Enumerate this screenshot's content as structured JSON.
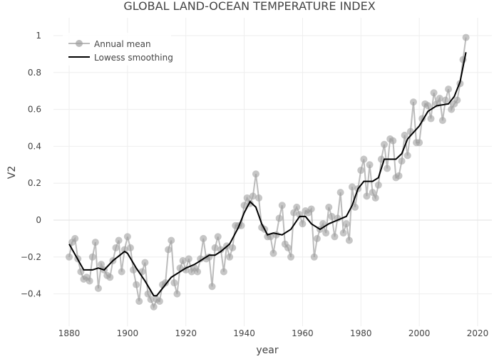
{
  "chart_data": {
    "type": "line",
    "title": "GLOBAL LAND-OCEAN TEMPERATURE INDEX",
    "xlabel": "year",
    "ylabel": "V2",
    "xlim": [
      1870,
      2024
    ],
    "ylim": [
      -0.58,
      1.08
    ],
    "xticks": [
      1880,
      1900,
      1920,
      1940,
      1960,
      1980,
      2000,
      2020
    ],
    "yticks": [
      -0.4,
      -0.2,
      0,
      0.2,
      0.4,
      0.6,
      0.8,
      1
    ],
    "grid": true,
    "legend_position": "top-left",
    "colors": {
      "annual": "#a0a0a0",
      "lowess": "#000000"
    },
    "series": [
      {
        "name": "Annual mean",
        "mode": "lines+markers",
        "x_start": 1880,
        "values": [
          -0.2,
          -0.12,
          -0.1,
          -0.21,
          -0.28,
          -0.32,
          -0.31,
          -0.33,
          -0.2,
          -0.12,
          -0.37,
          -0.24,
          -0.27,
          -0.3,
          -0.31,
          -0.22,
          -0.15,
          -0.11,
          -0.28,
          -0.16,
          -0.09,
          -0.15,
          -0.27,
          -0.35,
          -0.44,
          -0.28,
          -0.23,
          -0.4,
          -0.43,
          -0.47,
          -0.43,
          -0.44,
          -0.35,
          -0.34,
          -0.16,
          -0.11,
          -0.34,
          -0.4,
          -0.26,
          -0.22,
          -0.27,
          -0.21,
          -0.28,
          -0.26,
          -0.28,
          -0.21,
          -0.1,
          -0.21,
          -0.2,
          -0.36,
          -0.15,
          -0.09,
          -0.16,
          -0.28,
          -0.14,
          -0.2,
          -0.15,
          -0.03,
          -0.03,
          -0.03,
          0.08,
          0.12,
          0.09,
          0.13,
          0.25,
          0.12,
          -0.04,
          -0.05,
          -0.09,
          -0.09,
          -0.18,
          -0.08,
          0.01,
          0.08,
          -0.13,
          -0.15,
          -0.2,
          0.04,
          0.07,
          0.03,
          -0.02,
          0.05,
          0.04,
          0.06,
          -0.2,
          -0.1,
          -0.05,
          -0.02,
          -0.07,
          0.07,
          0.02,
          -0.09,
          0.01,
          0.15,
          -0.07,
          -0.02,
          -0.11,
          0.18,
          0.07,
          0.17,
          0.27,
          0.33,
          0.13,
          0.3,
          0.15,
          0.12,
          0.19,
          0.33,
          0.41,
          0.28,
          0.44,
          0.43,
          0.23,
          0.24,
          0.32,
          0.46,
          0.35,
          0.48,
          0.64,
          0.42,
          0.42,
          0.55,
          0.63,
          0.62,
          0.55,
          0.69,
          0.63,
          0.66,
          0.54,
          0.65,
          0.71,
          0.6,
          0.63,
          0.65,
          0.74,
          0.87,
          0.99
        ]
      },
      {
        "name": "Lowess smoothing",
        "mode": "lines",
        "x": [
          1880,
          1885,
          1888,
          1890,
          1892,
          1895,
          1899,
          1900,
          1903,
          1906,
          1909,
          1910,
          1913,
          1915,
          1918,
          1920,
          1923,
          1925,
          1928,
          1930,
          1932,
          1935,
          1938,
          1940,
          1942,
          1944,
          1946,
          1948,
          1950,
          1953,
          1956,
          1959,
          1961,
          1963,
          1966,
          1969,
          1972,
          1975,
          1977,
          1979,
          1981,
          1984,
          1986,
          1988,
          1992,
          1994,
          1996,
          2000,
          2003,
          2006,
          2010,
          2012,
          2014,
          2016
        ],
        "values": [
          -0.13,
          -0.27,
          -0.27,
          -0.26,
          -0.27,
          -0.22,
          -0.17,
          -0.18,
          -0.26,
          -0.33,
          -0.41,
          -0.41,
          -0.35,
          -0.31,
          -0.28,
          -0.26,
          -0.24,
          -0.22,
          -0.19,
          -0.19,
          -0.17,
          -0.13,
          -0.04,
          0.04,
          0.1,
          0.07,
          -0.02,
          -0.08,
          -0.07,
          -0.08,
          -0.05,
          0.02,
          0.02,
          -0.02,
          -0.05,
          -0.02,
          0.0,
          0.02,
          0.08,
          0.17,
          0.21,
          0.21,
          0.23,
          0.33,
          0.33,
          0.36,
          0.44,
          0.51,
          0.59,
          0.62,
          0.63,
          0.67,
          0.75,
          0.91
        ]
      }
    ]
  }
}
